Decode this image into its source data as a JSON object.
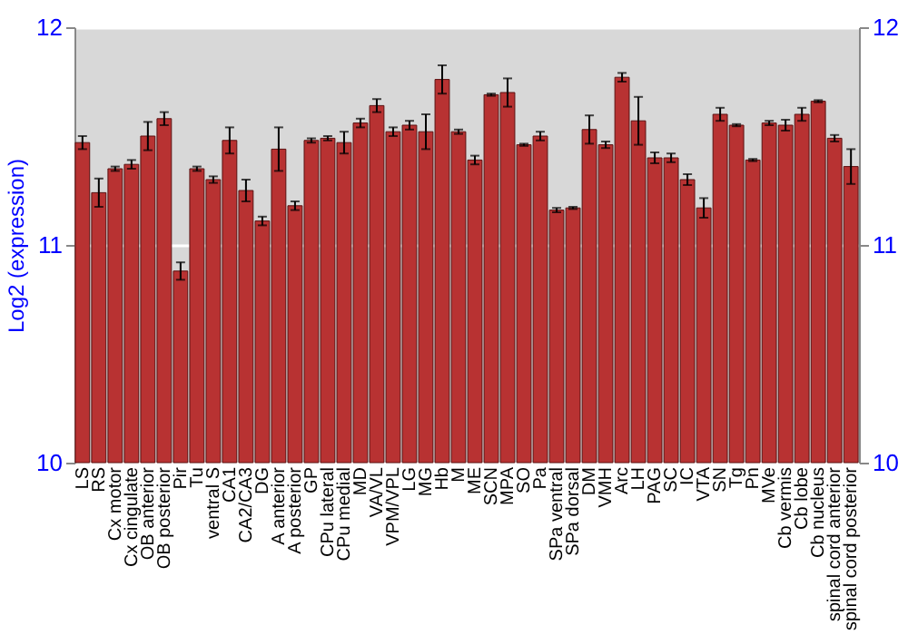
{
  "chart_data": {
    "type": "bar",
    "ylabel": "Log2 (expression)",
    "categories": [
      "LS",
      "RS",
      "Cx motor",
      "Cx cingulate",
      "OB anterior",
      "OB posterior",
      "Pir",
      "Tu",
      "ventral S",
      "CA1",
      "CA2/CA3",
      "DG",
      "A anterior",
      "A posterior",
      "GP",
      "CPu lateral",
      "CPu medial",
      "MD",
      "VA/VL",
      "VPM/VPL",
      "LG",
      "MG",
      "Hb",
      "M",
      "ME",
      "SCN",
      "MPA",
      "SO",
      "Pa",
      "SPa ventral",
      "SPa dorsal",
      "DM",
      "VMH",
      "Arc",
      "LH",
      "PAG",
      "SC",
      "IC",
      "VTA",
      "SN",
      "Tg",
      "Pn",
      "MVe",
      "Cb vermis",
      "Cb lobe",
      "Cb nucleus",
      "spinal cord anterior",
      "spinal cord posterior"
    ],
    "values": [
      11.47,
      11.24,
      11.35,
      11.37,
      11.5,
      11.58,
      10.88,
      11.35,
      11.3,
      11.48,
      11.25,
      11.11,
      11.44,
      11.18,
      11.48,
      11.49,
      11.47,
      11.56,
      11.64,
      11.52,
      11.55,
      11.52,
      11.76,
      11.52,
      11.39,
      11.69,
      11.7,
      11.46,
      11.5,
      11.16,
      11.17,
      11.53,
      11.46,
      11.77,
      11.57,
      11.4,
      11.4,
      11.3,
      11.17,
      11.6,
      11.55,
      11.39,
      11.56,
      11.55,
      11.6,
      11.66,
      11.49,
      11.36
    ],
    "errors": [
      0.03,
      0.065,
      0.01,
      0.02,
      0.065,
      0.03,
      0.04,
      0.01,
      0.015,
      0.06,
      0.05,
      0.02,
      0.1,
      0.02,
      0.01,
      0.01,
      0.05,
      0.02,
      0.03,
      0.02,
      0.02,
      0.08,
      0.065,
      0.01,
      0.02,
      0.005,
      0.065,
      0.005,
      0.02,
      0.01,
      0.005,
      0.065,
      0.015,
      0.02,
      0.11,
      0.025,
      0.02,
      0.025,
      0.045,
      0.03,
      0.005,
      0.005,
      0.01,
      0.025,
      0.03,
      0.005,
      0.015,
      0.08
    ],
    "color": "#b83232",
    "ylim": [
      10,
      12
    ],
    "yticks": [
      10,
      11,
      12
    ],
    "y2lim": [
      10,
      12
    ],
    "y2ticks": [
      10,
      11,
      12
    ],
    "grid": "y"
  }
}
